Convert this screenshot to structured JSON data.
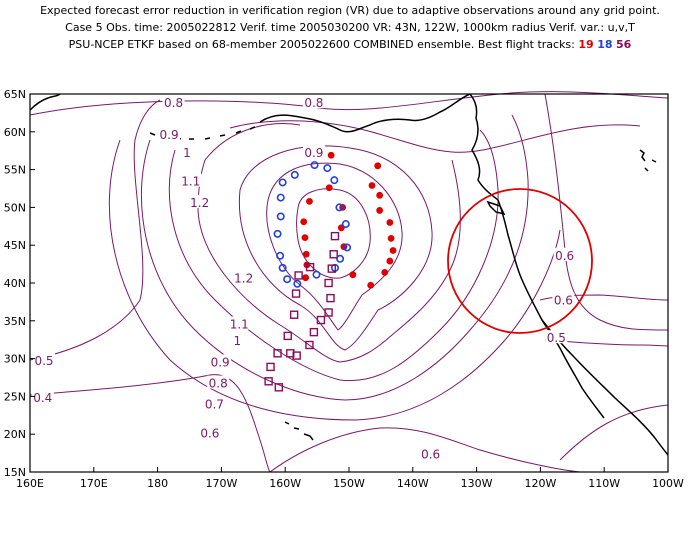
{
  "header": {
    "line1": "Expected forecast error reduction in verification region (VR) due to adaptive observations around any grid point.",
    "line2": "Case 5   Obs. time: 2005022812   Verif. time 2005030200   VR: 43N, 122W, 1000km radius   Verif. var.: u,v,T",
    "line3_prefix": "PSU-NCEP ETKF based on 68-member 2005022600 COMBINED ensemble.   Best flight tracks:",
    "track_red": "19",
    "track_blue": "18",
    "track_purple": "56"
  },
  "axes": {
    "x_ticks": [
      "160E",
      "170E",
      "180",
      "170W",
      "160W",
      "150W",
      "140W",
      "130W",
      "120W",
      "110W",
      "100W"
    ],
    "y_ticks": [
      "65N",
      "60N",
      "55N",
      "50N",
      "45N",
      "40N",
      "35N",
      "30N",
      "25N",
      "20N",
      "15N"
    ],
    "lon_range": [
      160,
      260
    ],
    "lat_range": [
      15,
      65
    ]
  },
  "contour_labels": [
    {
      "text": "0.8",
      "lon": 182.5,
      "lat": 63.8
    },
    {
      "text": "0.8",
      "lon": 204.5,
      "lat": 63.8
    },
    {
      "text": "0.9",
      "lon": 181.8,
      "lat": 59.6
    },
    {
      "text": "0.9",
      "lon": 204.5,
      "lat": 57.2
    },
    {
      "text": "1",
      "lon": 184.6,
      "lat": 57.2
    },
    {
      "text": "1.1",
      "lon": 185.2,
      "lat": 53.4
    },
    {
      "text": "1.2",
      "lon": 186.6,
      "lat": 50.6
    },
    {
      "text": "1.2",
      "lon": 193.5,
      "lat": 40.6
    },
    {
      "text": "1.1",
      "lon": 192.8,
      "lat": 34.5
    },
    {
      "text": "1",
      "lon": 192.5,
      "lat": 32.3
    },
    {
      "text": "0.9",
      "lon": 189.8,
      "lat": 29.5
    },
    {
      "text": "0.8",
      "lon": 189.5,
      "lat": 26.7
    },
    {
      "text": "0.7",
      "lon": 188.9,
      "lat": 23.9
    },
    {
      "text": "0.6",
      "lon": 188.2,
      "lat": 20.1
    },
    {
      "text": "0.5",
      "lon": 162.2,
      "lat": 29.7
    },
    {
      "text": "0.4",
      "lon": 162.0,
      "lat": 24.8
    },
    {
      "text": "0.6",
      "lon": 243.8,
      "lat": 43.6
    },
    {
      "text": "0.6",
      "lon": 243.6,
      "lat": 37.7
    },
    {
      "text": "0.5",
      "lon": 242.5,
      "lat": 32.7
    },
    {
      "text": "0.6",
      "lon": 222.8,
      "lat": 17.3
    }
  ],
  "flight_tracks": {
    "red": {
      "color": "#e00000",
      "points": [
        [
          207.2,
          56.9
        ],
        [
          214.5,
          55.5
        ],
        [
          213.6,
          52.9
        ],
        [
          214.8,
          51.6
        ],
        [
          214.8,
          49.6
        ],
        [
          216.4,
          48.0
        ],
        [
          216.6,
          45.9
        ],
        [
          216.9,
          44.3
        ],
        [
          216.4,
          42.9
        ],
        [
          215.6,
          41.4
        ],
        [
          213.4,
          39.7
        ],
        [
          210.6,
          41.1
        ],
        [
          209.2,
          44.8
        ],
        [
          208.8,
          47.3
        ],
        [
          209.0,
          50.0
        ],
        [
          206.9,
          52.6
        ],
        [
          203.8,
          50.8
        ],
        [
          202.9,
          48.1
        ],
        [
          203.1,
          46.0
        ],
        [
          203.3,
          43.8
        ],
        [
          203.4,
          42.4
        ],
        [
          203.2,
          40.7
        ]
      ]
    },
    "blue": {
      "color": "#2040e0",
      "points": [
        [
          204.6,
          55.6
        ],
        [
          201.5,
          54.3
        ],
        [
          199.6,
          53.3
        ],
        [
          199.3,
          51.3
        ],
        [
          199.3,
          48.8
        ],
        [
          198.8,
          46.5
        ],
        [
          199.2,
          43.6
        ],
        [
          199.6,
          42.0
        ],
        [
          200.3,
          40.5
        ],
        [
          201.9,
          39.9
        ],
        [
          204.9,
          41.1
        ],
        [
          207.8,
          42.0
        ],
        [
          208.6,
          43.2
        ],
        [
          209.7,
          44.7
        ],
        [
          209.5,
          47.8
        ],
        [
          208.5,
          50.0
        ],
        [
          207.7,
          53.6
        ],
        [
          206.6,
          55.2
        ]
      ]
    },
    "purple": {
      "color": "#8b0a5a",
      "points": [
        [
          203.9,
          42.1
        ],
        [
          202.1,
          41.0
        ],
        [
          201.7,
          38.6
        ],
        [
          201.4,
          35.8
        ],
        [
          200.4,
          33.0
        ],
        [
          200.8,
          30.7
        ],
        [
          198.8,
          30.7
        ],
        [
          197.7,
          28.9
        ],
        [
          197.4,
          27.0
        ],
        [
          199.0,
          26.2
        ],
        [
          201.8,
          30.4
        ],
        [
          203.8,
          31.8
        ],
        [
          204.5,
          33.5
        ],
        [
          205.6,
          35.1
        ],
        [
          206.8,
          36.1
        ],
        [
          207.1,
          38.0
        ],
        [
          206.8,
          40.0
        ],
        [
          207.3,
          41.9
        ],
        [
          207.6,
          43.8
        ],
        [
          207.8,
          46.2
        ]
      ]
    }
  },
  "verification_region": {
    "color": "#e00000",
    "center_lon": 238,
    "center_lat": 43,
    "radius_km": 1000
  },
  "colors": {
    "contour": "#7a1a6a",
    "coast": "#000000",
    "frame": "#000000"
  }
}
